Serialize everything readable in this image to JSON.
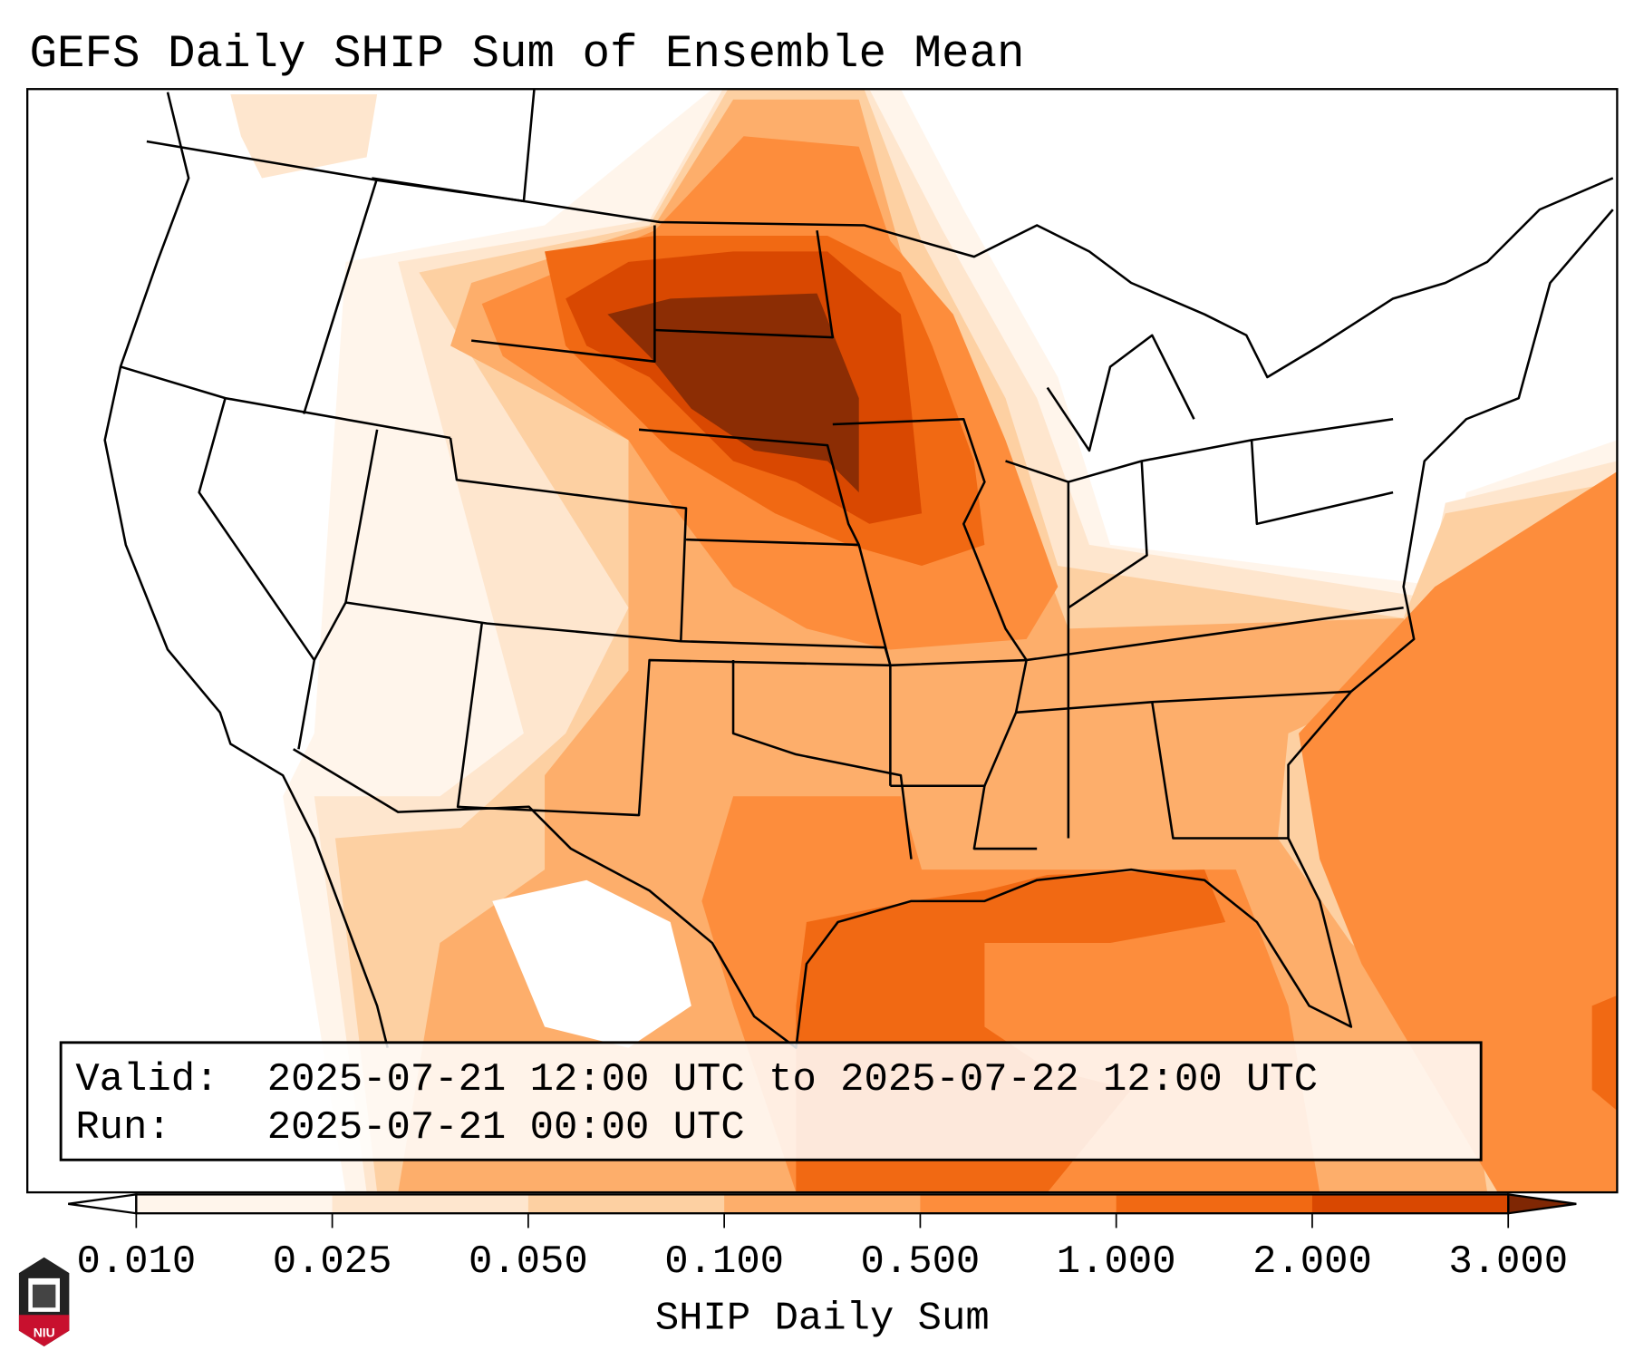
{
  "title": "GEFS Daily SHIP Sum of Ensemble Mean",
  "info_box": {
    "valid_label": "Valid:",
    "valid_value": "2025-07-21 12:00 UTC to 2025-07-22 12:00 UTC",
    "run_label": "Run:",
    "run_value": "2025-07-21 00:00 UTC"
  },
  "logo_text": "NIU",
  "chart_data": {
    "type": "heatmap",
    "title": "GEFS Daily SHIP Sum of Ensemble Mean",
    "colorbar": {
      "label": "SHIP Daily Sum",
      "ticks": [
        "0.010",
        "0.025",
        "0.050",
        "0.100",
        "0.500",
        "1.000",
        "2.000",
        "3.000"
      ],
      "levels": [
        0.01,
        0.025,
        0.05,
        0.1,
        0.5,
        1.0,
        2.0,
        3.0
      ],
      "colors": [
        "#fff5eb",
        "#fee6ce",
        "#fdd0a2",
        "#fdae6b",
        "#fd8d3c",
        "#f16913",
        "#d94801",
        "#8c2d04"
      ],
      "extend": "both",
      "under_color": "#ffffff",
      "over_color": "#7f2704"
    },
    "regions": [
      {
        "name": "South Dakota / southern North Dakota maximum",
        "level": "> 3.000"
      },
      {
        "name": "Northern Plains and upper Midwest",
        "level": "1.000-3.000"
      },
      {
        "name": "Gulf of Mexico",
        "level": "1.000-2.000"
      },
      {
        "name": "Western Atlantic",
        "level": "0.500-1.000"
      },
      {
        "name": "Southern Plains and Southeast",
        "level": "0.100-0.500"
      }
    ]
  }
}
